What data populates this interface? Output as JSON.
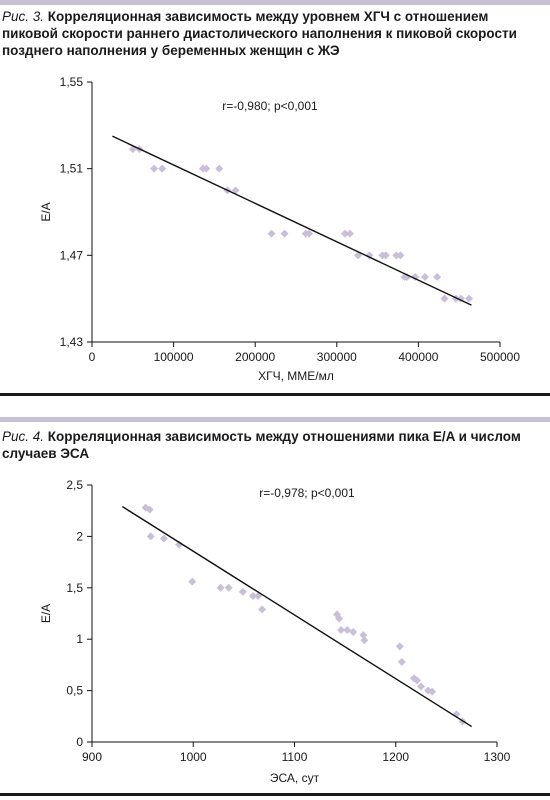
{
  "chart_data": [
    {
      "type": "scatter",
      "figure_label": "Рис. 3.",
      "title": "Корреляционная зависимость между уровнем ХГЧ с отношением пиковой скорости раннего диастолического наполнения к пиковой скорости позднего наполнения у беременных женщин с ЖЭ",
      "xlabel": "ХГЧ, МME/мл",
      "ylabel": "E/A",
      "annotation": "r=-0,980; p<0,001",
      "xlim": [
        0,
        500000
      ],
      "ylim": [
        1.43,
        1.55
      ],
      "xticks": [
        0,
        100000,
        200000,
        300000,
        400000,
        500000
      ],
      "xtick_labels": [
        "0",
        "100000",
        "200000",
        "300000",
        "400000",
        "500000"
      ],
      "yticks": [
        1.43,
        1.47,
        1.51,
        1.55
      ],
      "ytick_labels": [
        "1,43",
        "1,47",
        "1,51",
        "1,55"
      ],
      "grid": false,
      "series": [
        {
          "marker_color": "#c9c0d8",
          "x": [
            50000,
            58000,
            76000,
            86000,
            136000,
            140000,
            156000,
            166000,
            176000,
            220000,
            236000,
            262000,
            266000,
            310000,
            316000,
            326000,
            340000,
            356000,
            360000,
            373000,
            378000,
            383000,
            386000,
            396000,
            408000,
            423000,
            432000,
            446000,
            452000,
            462000
          ],
          "y": [
            1.519,
            1.519,
            1.51,
            1.51,
            1.51,
            1.51,
            1.51,
            1.5,
            1.5,
            1.48,
            1.48,
            1.48,
            1.48,
            1.48,
            1.48,
            1.47,
            1.47,
            1.47,
            1.47,
            1.47,
            1.47,
            1.46,
            1.46,
            1.46,
            1.46,
            1.46,
            1.45,
            1.45,
            1.45,
            1.45
          ]
        }
      ],
      "trendline": {
        "x": [
          25000,
          465000
        ],
        "y": [
          1.525,
          1.447
        ],
        "color": "#111111"
      }
    },
    {
      "type": "scatter",
      "figure_label": "Рис. 4.",
      "title": "Корреляционная зависимость между отношениями пика E/A и числом случаев ЭСА",
      "xlabel": "ЭСА, сут",
      "ylabel": "E/A",
      "annotation": "r=-0,978; p<0,001",
      "xlim": [
        900,
        1300
      ],
      "ylim": [
        0,
        2.5
      ],
      "xticks": [
        900,
        1000,
        1100,
        1200,
        1300
      ],
      "xtick_labels": [
        "900",
        "1000",
        "1100",
        "1200",
        "1300"
      ],
      "yticks": [
        0,
        0.5,
        1,
        1.5,
        2,
        2.5
      ],
      "ytick_labels": [
        "0",
        "0,5",
        "1",
        "1,5",
        "2",
        "2,5"
      ],
      "grid": false,
      "series": [
        {
          "marker_color": "#c9c0d8",
          "x": [
            953,
            957,
            958,
            971,
            986,
            999,
            1027,
            1035,
            1049,
            1059,
            1064,
            1068,
            1142,
            1144,
            1146,
            1152,
            1158,
            1168,
            1169,
            1204,
            1206,
            1218,
            1221,
            1225,
            1232,
            1236,
            1260,
            1266
          ],
          "y": [
            2.28,
            2.26,
            2.0,
            1.98,
            1.92,
            1.56,
            1.5,
            1.5,
            1.46,
            1.42,
            1.42,
            1.29,
            1.24,
            1.2,
            1.09,
            1.09,
            1.07,
            1.04,
            0.99,
            0.93,
            0.78,
            0.62,
            0.6,
            0.54,
            0.5,
            0.49,
            0.27,
            0.2
          ]
        }
      ],
      "trendline": {
        "x": [
          930,
          1275
        ],
        "y": [
          2.29,
          0.15
        ],
        "color": "#111111"
      }
    }
  ]
}
